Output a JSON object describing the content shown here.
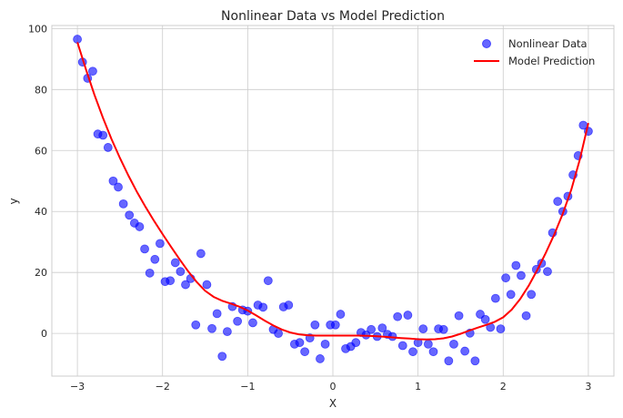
{
  "chart_data": {
    "type": "scatter",
    "title": "Nonlinear Data vs Model Prediction",
    "xlabel": "X",
    "ylabel": "y",
    "xlim": [
      -3.3,
      3.3
    ],
    "ylim": [
      -14,
      101
    ],
    "xticks": [
      -3,
      -2,
      -1,
      0,
      1,
      2,
      3
    ],
    "yticks": [
      0,
      20,
      40,
      60,
      80,
      100
    ],
    "xtick_labels": [
      "−3",
      "−2",
      "−1",
      "0",
      "1",
      "2",
      "3"
    ],
    "ytick_labels": [
      "0",
      "20",
      "40",
      "60",
      "80",
      "100"
    ],
    "grid": true,
    "legend_position": "top-right",
    "colors": {
      "data": "#0000ff",
      "model": "#ff0000",
      "grid": "#cccccc",
      "spine": "#cccccc"
    },
    "series": [
      {
        "name": "Nonlinear Data",
        "kind": "scatter",
        "points": [
          [
            -3.0,
            96.5
          ],
          [
            -2.94,
            89
          ],
          [
            -2.88,
            83.7
          ],
          [
            -2.82,
            86
          ],
          [
            -2.76,
            65.4
          ],
          [
            -2.7,
            65
          ],
          [
            -2.64,
            61
          ],
          [
            -2.58,
            50
          ],
          [
            -2.52,
            48
          ],
          [
            -2.46,
            42.5
          ],
          [
            -2.39,
            38.8
          ],
          [
            -2.33,
            36.2
          ],
          [
            -2.27,
            35
          ],
          [
            -2.21,
            27.7
          ],
          [
            -2.15,
            19.8
          ],
          [
            -2.09,
            24.3
          ],
          [
            -2.03,
            29.5
          ],
          [
            -1.97,
            17
          ],
          [
            -1.91,
            17.3
          ],
          [
            -1.85,
            23.2
          ],
          [
            -1.79,
            20.3
          ],
          [
            -1.73,
            16
          ],
          [
            -1.67,
            18
          ],
          [
            -1.61,
            2.8
          ],
          [
            -1.55,
            26.2
          ],
          [
            -1.48,
            16
          ],
          [
            -1.42,
            1.6
          ],
          [
            -1.36,
            6.5
          ],
          [
            -1.3,
            -7.5
          ],
          [
            -1.24,
            0.6
          ],
          [
            -1.18,
            8.8
          ],
          [
            -1.12,
            4
          ],
          [
            -1.06,
            7.7
          ],
          [
            -1.0,
            7.3
          ],
          [
            -0.94,
            3.5
          ],
          [
            -0.88,
            9.3
          ],
          [
            -0.82,
            8.6
          ],
          [
            -0.76,
            17.3
          ],
          [
            -0.7,
            1.3
          ],
          [
            -0.64,
            0
          ],
          [
            -0.58,
            8.7
          ],
          [
            -0.52,
            9.3
          ],
          [
            -0.45,
            -3.5
          ],
          [
            -0.39,
            -3
          ],
          [
            -0.33,
            -6
          ],
          [
            -0.27,
            -1.5
          ],
          [
            -0.21,
            2.8
          ],
          [
            -0.15,
            -8.3
          ],
          [
            -0.09,
            -3.5
          ],
          [
            -0.03,
            2.8
          ],
          [
            0.03,
            2.8
          ],
          [
            0.09,
            6.3
          ],
          [
            0.15,
            -5
          ],
          [
            0.21,
            -4.3
          ],
          [
            0.27,
            -3
          ],
          [
            0.33,
            0.3
          ],
          [
            0.39,
            -0.5
          ],
          [
            0.45,
            1.3
          ],
          [
            0.52,
            -1
          ],
          [
            0.58,
            1.8
          ],
          [
            0.64,
            -0.3
          ],
          [
            0.7,
            -1
          ],
          [
            0.76,
            5.5
          ],
          [
            0.82,
            -4
          ],
          [
            0.88,
            6
          ],
          [
            0.94,
            -6
          ],
          [
            1.0,
            -3
          ],
          [
            1.06,
            1.5
          ],
          [
            1.12,
            -3.5
          ],
          [
            1.18,
            -6
          ],
          [
            1.24,
            1.5
          ],
          [
            1.3,
            1.3
          ],
          [
            1.36,
            -9
          ],
          [
            1.42,
            -3.5
          ],
          [
            1.48,
            5.8
          ],
          [
            1.55,
            -5.8
          ],
          [
            1.61,
            0.1
          ],
          [
            1.67,
            -9
          ],
          [
            1.73,
            6.3
          ],
          [
            1.79,
            4.6
          ],
          [
            1.85,
            2
          ],
          [
            1.91,
            11.5
          ],
          [
            1.97,
            1.5
          ],
          [
            2.03,
            18.2
          ],
          [
            2.09,
            12.8
          ],
          [
            2.15,
            22.3
          ],
          [
            2.21,
            19
          ],
          [
            2.27,
            5.8
          ],
          [
            2.33,
            12.8
          ],
          [
            2.39,
            21
          ],
          [
            2.45,
            23
          ],
          [
            2.52,
            20.3
          ],
          [
            2.58,
            33
          ],
          [
            2.64,
            43.3
          ],
          [
            2.7,
            40
          ],
          [
            2.76,
            45
          ],
          [
            2.82,
            52
          ],
          [
            2.88,
            58.3
          ],
          [
            2.94,
            68.3
          ],
          [
            3.0,
            66.3
          ]
        ]
      },
      {
        "name": "Model Prediction",
        "kind": "line",
        "points": [
          [
            -3.0,
            95.5
          ],
          [
            -2.9,
            86.6
          ],
          [
            -2.8,
            78.3
          ],
          [
            -2.7,
            70.7
          ],
          [
            -2.6,
            63.8
          ],
          [
            -2.5,
            57.5
          ],
          [
            -2.4,
            51.7
          ],
          [
            -2.3,
            46.4
          ],
          [
            -2.2,
            41.5
          ],
          [
            -2.1,
            36.9
          ],
          [
            -2.0,
            32.6
          ],
          [
            -1.9,
            28.4
          ],
          [
            -1.8,
            24.3
          ],
          [
            -1.7,
            20.4
          ],
          [
            -1.6,
            16.9
          ],
          [
            -1.5,
            14.0
          ],
          [
            -1.4,
            12.0
          ],
          [
            -1.3,
            10.7
          ],
          [
            -1.2,
            9.8
          ],
          [
            -1.1,
            8.8
          ],
          [
            -1.0,
            7.5
          ],
          [
            -0.9,
            5.9
          ],
          [
            -0.8,
            4.2
          ],
          [
            -0.7,
            2.6
          ],
          [
            -0.6,
            1.3
          ],
          [
            -0.5,
            0.3
          ],
          [
            -0.4,
            -0.3
          ],
          [
            -0.3,
            -0.6
          ],
          [
            -0.2,
            -0.7
          ],
          [
            -0.1,
            -0.7
          ],
          [
            0.0,
            -0.7
          ],
          [
            0.1,
            -0.7
          ],
          [
            0.2,
            -0.7
          ],
          [
            0.3,
            -0.7
          ],
          [
            0.4,
            -0.8
          ],
          [
            0.5,
            -0.9
          ],
          [
            0.6,
            -1.1
          ],
          [
            0.7,
            -1.3
          ],
          [
            0.8,
            -1.5
          ],
          [
            0.9,
            -1.7
          ],
          [
            1.0,
            -1.9
          ],
          [
            1.1,
            -2.0
          ],
          [
            1.2,
            -1.9
          ],
          [
            1.3,
            -1.6
          ],
          [
            1.4,
            -1.0
          ],
          [
            1.5,
            -0.1
          ],
          [
            1.6,
            0.9
          ],
          [
            1.7,
            1.9
          ],
          [
            1.8,
            2.8
          ],
          [
            1.9,
            3.8
          ],
          [
            2.0,
            5.3
          ],
          [
            2.1,
            7.8
          ],
          [
            2.2,
            11.3
          ],
          [
            2.3,
            15.7
          ],
          [
            2.4,
            20.8
          ],
          [
            2.5,
            26.4
          ],
          [
            2.6,
            32.5
          ],
          [
            2.7,
            39.3
          ],
          [
            2.8,
            47.2
          ],
          [
            2.9,
            57.0
          ],
          [
            3.0,
            69.0
          ]
        ]
      }
    ]
  }
}
